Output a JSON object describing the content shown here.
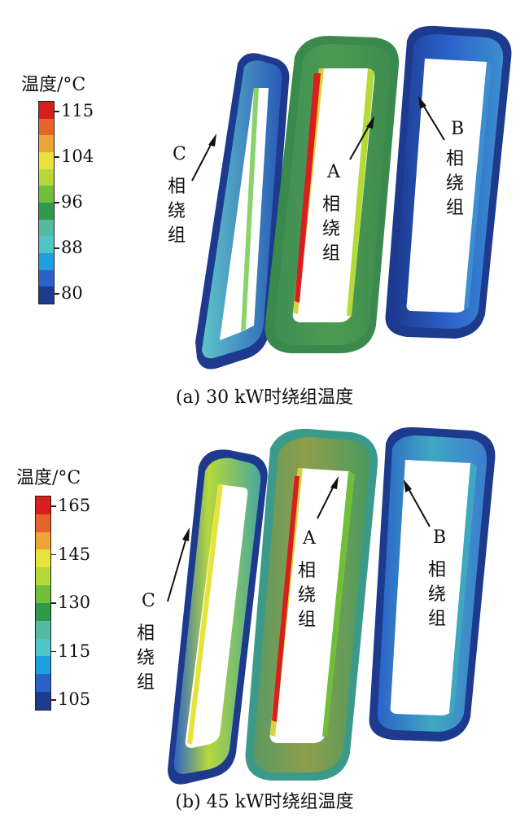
{
  "panels": [
    {
      "id": "a",
      "legend": {
        "title": "温度/°C",
        "ticks": [
          "115",
          "104",
          "96",
          "88",
          "80"
        ],
        "colors": [
          "#1d3a8f",
          "#2b62c9",
          "#1f9fe0",
          "#4fc6c6",
          "#56b9a1",
          "#2f9a4a",
          "#6fbf3a",
          "#b6d93a",
          "#e8e23a",
          "#f0a33a",
          "#e8632c",
          "#d81e1e"
        ]
      },
      "labels": {
        "c": [
          "C",
          "相",
          "绕",
          "组"
        ],
        "a": [
          "A",
          "相",
          "绕",
          "组"
        ],
        "b": [
          "B",
          "相",
          "绕",
          "组"
        ]
      },
      "caption": "(a) 30 kW时绕组温度"
    },
    {
      "id": "b",
      "legend": {
        "title": "温度/°C",
        "ticks": [
          "165",
          "145",
          "130",
          "115",
          "105"
        ],
        "colors": [
          "#1d3a8f",
          "#2b62c9",
          "#1f9fe0",
          "#4fc6c6",
          "#56b9a1",
          "#2f9a4a",
          "#6fbf3a",
          "#b6d93a",
          "#e8e23a",
          "#f0a33a",
          "#e8632c",
          "#d81e1e"
        ]
      },
      "labels": {
        "c": [
          "C",
          "相",
          "绕",
          "组"
        ],
        "a": [
          "A",
          "相",
          "绕",
          "组"
        ],
        "b": [
          "B",
          "相",
          "绕",
          "组"
        ]
      },
      "caption": "(b) 45 kW时绕组温度"
    }
  ]
}
